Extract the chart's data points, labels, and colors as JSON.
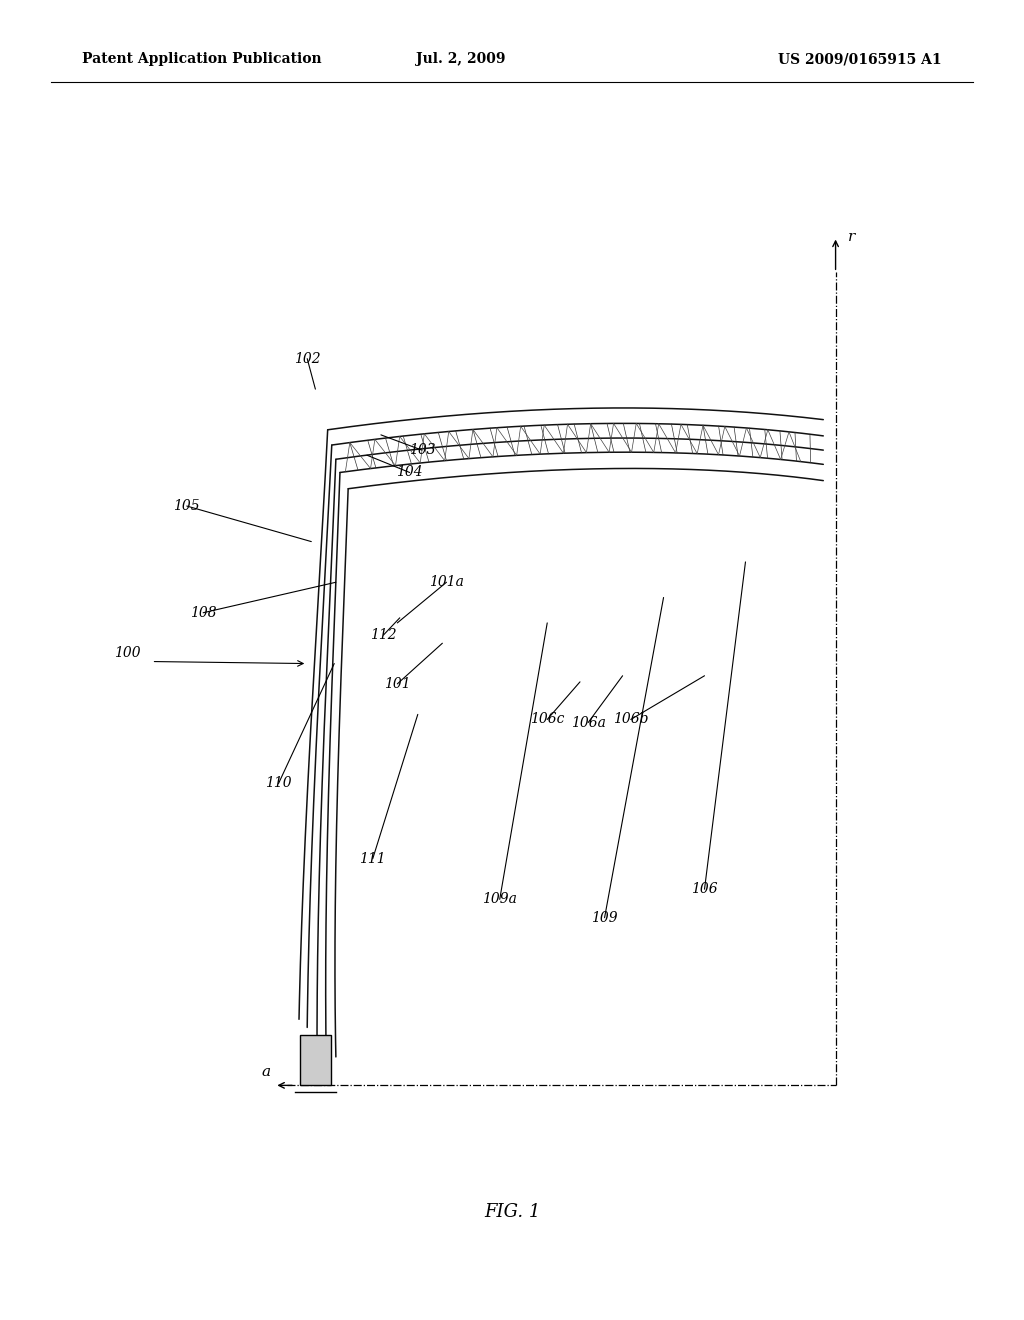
{
  "bg_color": "#ffffff",
  "header_left": "Patent Application Publication",
  "header_mid": "Jul. 2, 2009",
  "header_right": "US 2009/0165915 A1",
  "fig_label": "FIG. 1",
  "axis_r_label": "r",
  "axis_a_label": "a"
}
